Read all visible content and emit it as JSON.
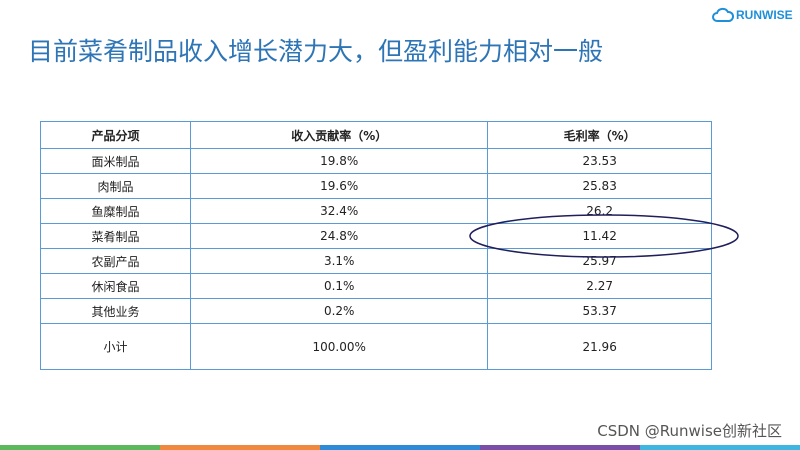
{
  "header": {
    "title": "目前菜肴制品收入增长潜力大，但盈利能力相对一般",
    "logo": "RUNWISE"
  },
  "table": {
    "columns": [
      "产品分项",
      "收入贡献率（%）",
      "毛利率（%）"
    ],
    "rows": [
      [
        "面米制品",
        "19.8%",
        "23.53"
      ],
      [
        "肉制品",
        "19.6%",
        "25.83"
      ],
      [
        "鱼糜制品",
        "32.4%",
        "26.2"
      ],
      [
        "菜肴制品",
        "24.8%",
        "11.42"
      ],
      [
        "农副产品",
        "3.1%",
        "25.97"
      ],
      [
        "休闲食品",
        "0.1%",
        "2.27"
      ],
      [
        "其他业务",
        "0.2%",
        "53.37"
      ],
      [
        "小计",
        "100.00%",
        "21.96"
      ]
    ]
  },
  "watermark": "CSDN @Runwise创新社区"
}
